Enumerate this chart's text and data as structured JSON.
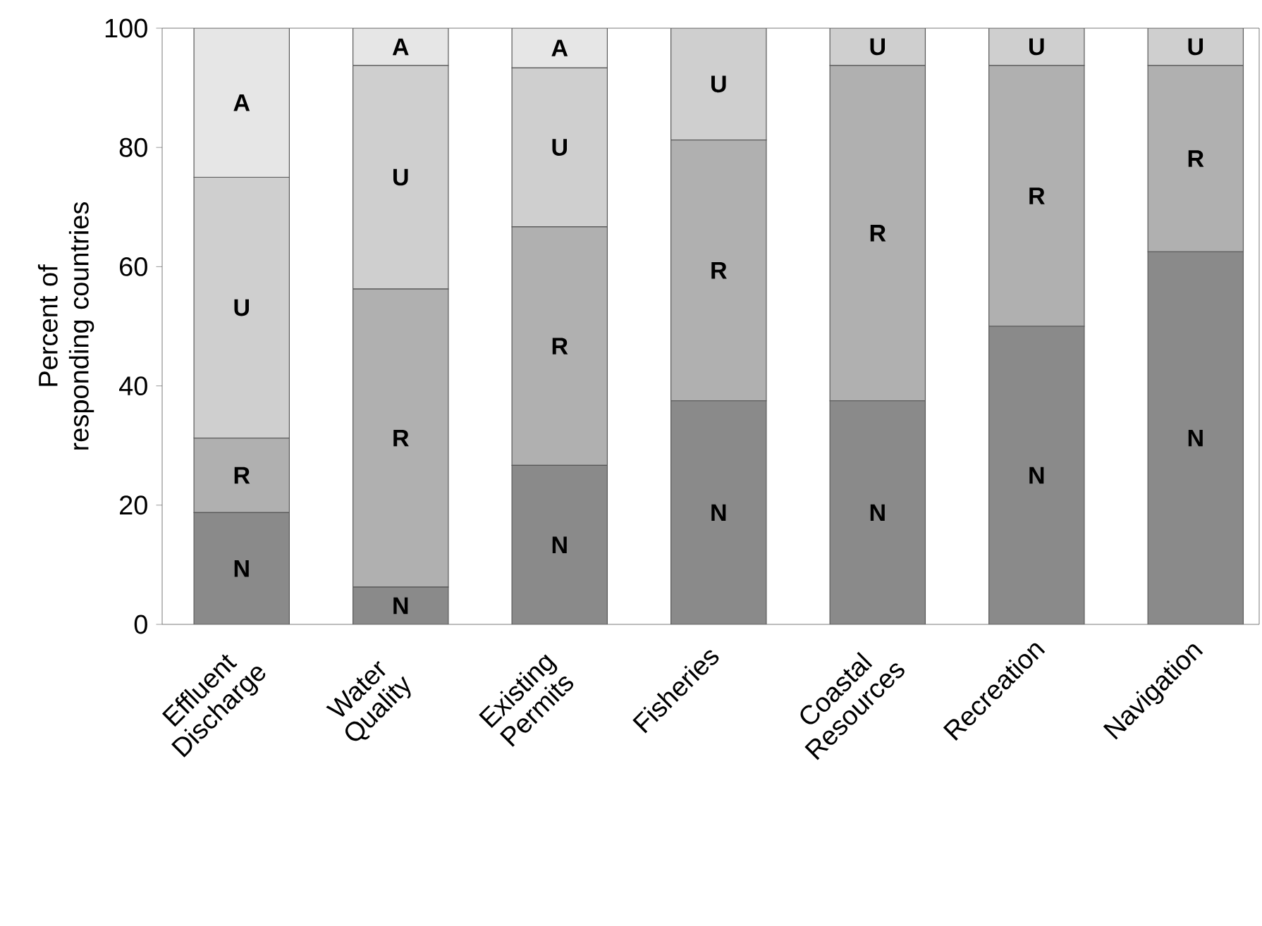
{
  "chart_data": {
    "type": "bar",
    "stacked": true,
    "ylabel": "Percent of responding countries",
    "categories": [
      "Effluent Discharge",
      "Water Quality",
      "Existing Permits",
      "Fisheries",
      "Coastal Resources",
      "Recreation",
      "Navigation"
    ],
    "series": [
      {
        "name": "N",
        "color": "#8a8a8a",
        "values": [
          18.75,
          6.25,
          26.67,
          37.5,
          37.5,
          50,
          62.5
        ]
      },
      {
        "name": "R",
        "color": "#b0b0b0",
        "values": [
          12.5,
          50,
          40,
          43.75,
          56.25,
          43.75,
          31.25
        ]
      },
      {
        "name": "U",
        "color": "#cfcfcf",
        "values": [
          43.75,
          37.5,
          26.67,
          18.75,
          6.25,
          6.25,
          6.25
        ]
      },
      {
        "name": "A",
        "color": "#e6e6e6",
        "values": [
          25,
          6.25,
          6.67,
          null,
          null,
          null,
          null
        ]
      }
    ],
    "ylim": [
      0,
      100
    ],
    "yticks": [
      0,
      20,
      40,
      60,
      80,
      100
    ],
    "grid": false
  }
}
